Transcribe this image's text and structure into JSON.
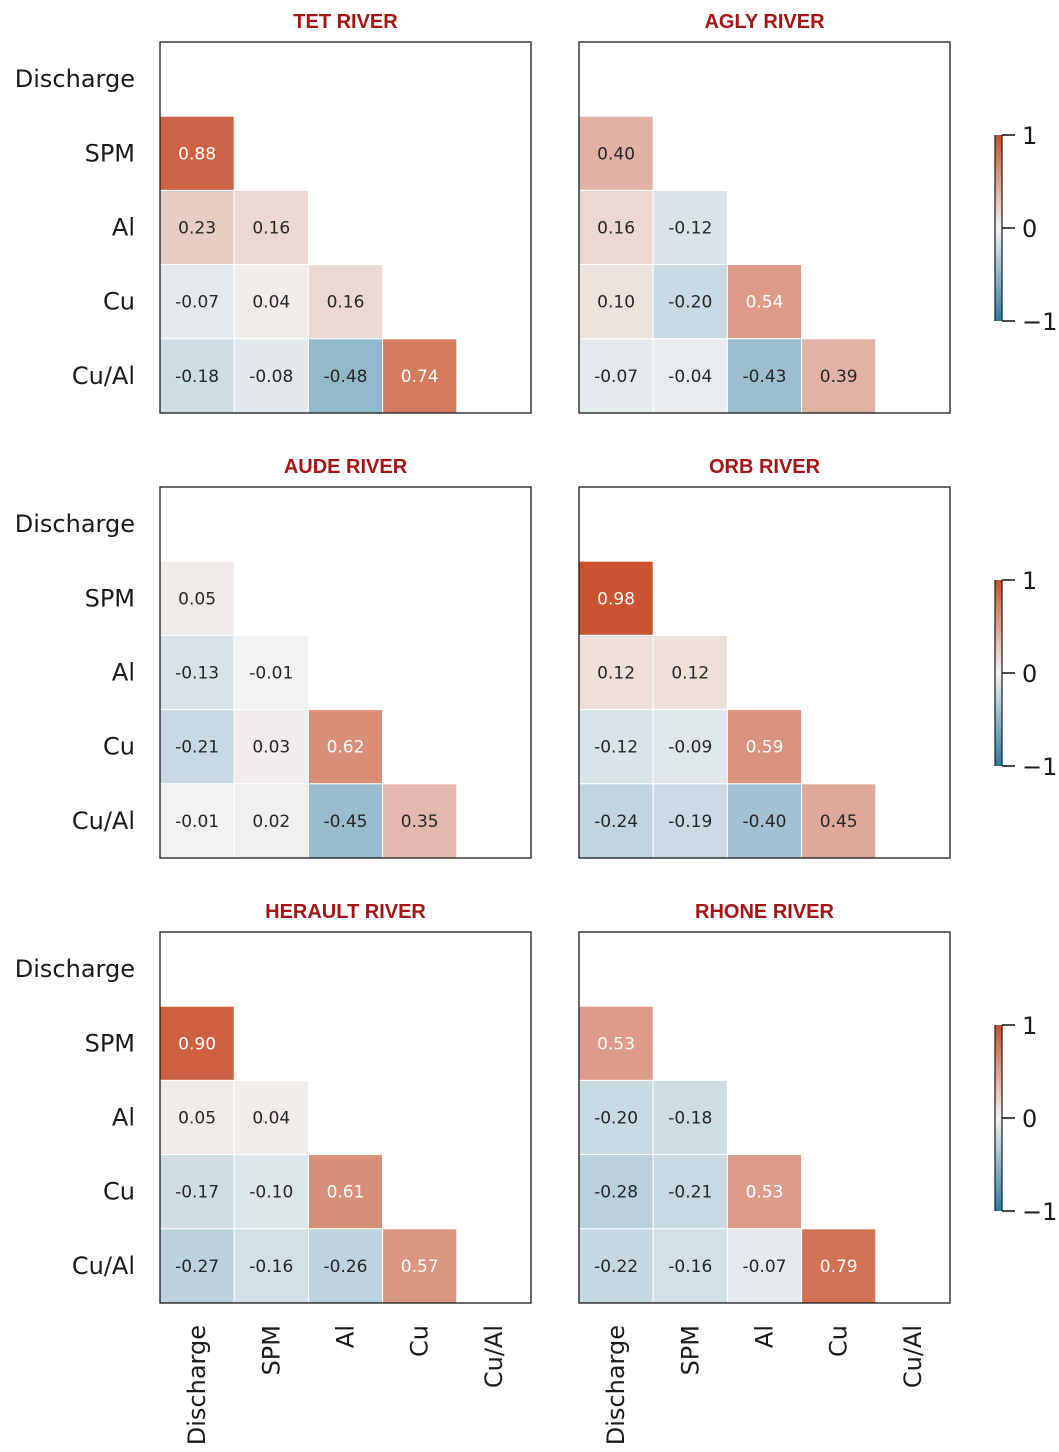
{
  "chart_data": {
    "type": "heatmap",
    "variables": [
      "Discharge",
      "SPM",
      "Al",
      "Cu",
      "Cu/Al"
    ],
    "value_range": [
      -1,
      1
    ],
    "colormap": {
      "low": "#2b7ba1",
      "mid": "#f2f2f2",
      "high": "#c8502c"
    },
    "title_color": "#a31414",
    "colorbar_ticks": [
      "1",
      "0",
      "−1"
    ],
    "panels": [
      {
        "title": "TET RIVER",
        "matrix": [
          [],
          [
            0.88
          ],
          [
            0.23,
            0.16
          ],
          [
            -0.07,
            0.04,
            0.16
          ],
          [
            -0.18,
            -0.08,
            -0.48,
            0.74
          ]
        ],
        "labels": [
          [],
          [
            "0.88"
          ],
          [
            "0.23",
            "0.16"
          ],
          [
            "-0.07",
            "0.04",
            "0.16"
          ],
          [
            "-0.18",
            "-0.08",
            "-0.48",
            "0.74"
          ]
        ]
      },
      {
        "title": "AGLY RIVER",
        "matrix": [
          [],
          [
            0.4
          ],
          [
            0.16,
            -0.12
          ],
          [
            0.1,
            -0.2,
            0.54
          ],
          [
            -0.07,
            -0.04,
            -0.43,
            0.39
          ]
        ],
        "labels": [
          [],
          [
            "0.40"
          ],
          [
            "0.16",
            "-0.12"
          ],
          [
            "0.10",
            "-0.20",
            "0.54"
          ],
          [
            "-0.07",
            "-0.04",
            "-0.43",
            "0.39"
          ]
        ]
      },
      {
        "title": "AUDE RIVER",
        "matrix": [
          [],
          [
            0.05
          ],
          [
            -0.13,
            -0.01
          ],
          [
            -0.21,
            0.03,
            0.62
          ],
          [
            -0.01,
            0.02,
            -0.45,
            0.35
          ]
        ],
        "labels": [
          [],
          [
            "0.05"
          ],
          [
            "-0.13",
            "-0.01"
          ],
          [
            "-0.21",
            "0.03",
            "0.62"
          ],
          [
            "-0.01",
            "0.02",
            "-0.45",
            "0.35"
          ]
        ]
      },
      {
        "title": "ORB RIVER",
        "matrix": [
          [],
          [
            0.98
          ],
          [
            0.12,
            0.12
          ],
          [
            -0.12,
            -0.09,
            0.59
          ],
          [
            -0.24,
            -0.19,
            -0.4,
            0.45
          ]
        ],
        "labels": [
          [],
          [
            "0.98"
          ],
          [
            "0.12",
            "0.12"
          ],
          [
            "-0.12",
            "-0.09",
            "0.59"
          ],
          [
            "-0.24",
            "-0.19",
            "-0.40",
            "0.45"
          ]
        ]
      },
      {
        "title": "HERAULT RIVER",
        "matrix": [
          [],
          [
            0.9
          ],
          [
            0.05,
            0.04
          ],
          [
            -0.17,
            -0.1,
            0.61
          ],
          [
            -0.27,
            -0.16,
            -0.26,
            0.57
          ]
        ],
        "labels": [
          [],
          [
            "0.90"
          ],
          [
            "0.05",
            "0.04"
          ],
          [
            "-0.17",
            "-0.10",
            "0.61"
          ],
          [
            "-0.27",
            "-0.16",
            "-0.26",
            "0.57"
          ]
        ]
      },
      {
        "title": "RHONE RIVER",
        "matrix": [
          [],
          [
            0.53
          ],
          [
            -0.2,
            -0.18
          ],
          [
            -0.28,
            -0.21,
            0.53
          ],
          [
            -0.22,
            -0.16,
            -0.07,
            0.79
          ]
        ],
        "labels": [
          [],
          [
            "0.53"
          ],
          [
            "-0.20",
            "-0.18"
          ],
          [
            "-0.28",
            "-0.21",
            "0.53"
          ],
          [
            "-0.22",
            "-0.16",
            "-0.07",
            "0.79"
          ]
        ]
      }
    ]
  }
}
